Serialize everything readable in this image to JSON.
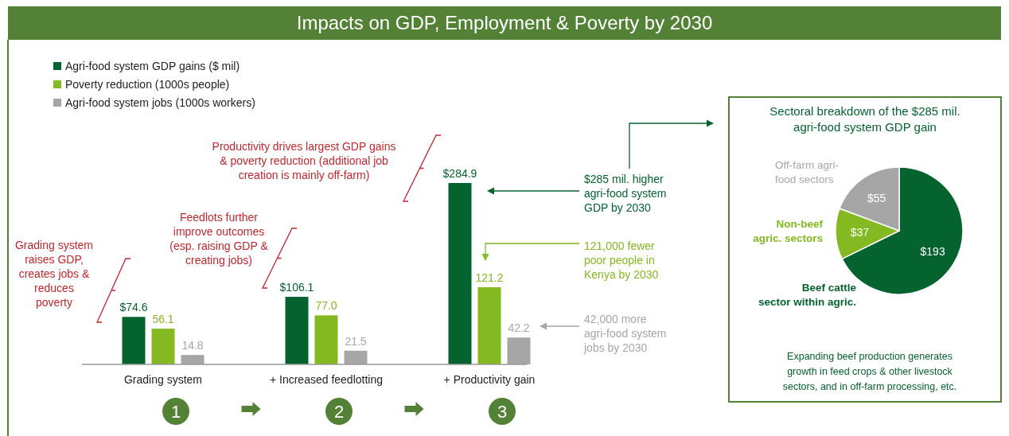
{
  "chart_data": [
    {
      "type": "bar",
      "title": "Impacts on GDP, Employment & Poverty by 2030",
      "categories": [
        "Grading system",
        "+ Increased feedlotting",
        "+ Productivity gain"
      ],
      "legend": "top left",
      "series": [
        {
          "name": "Agri-food system GDP gains ($ mil)",
          "color": "#05632f",
          "values": [
            74.6,
            106.1,
            284.9
          ],
          "value_labels": [
            "$74.6",
            "$106.1",
            "$284.9"
          ]
        },
        {
          "name": "Poverty reduction (1000s people)",
          "color": "#84b921",
          "values": [
            56.1,
            77.0,
            121.2
          ],
          "value_labels": [
            "56.1",
            "77.0",
            "121.2"
          ]
        },
        {
          "name": "Agri-food system jobs (1000s workers)",
          "color": "#a6a6a6",
          "values": [
            14.8,
            21.5,
            42.2
          ],
          "value_labels": [
            "14.8",
            "21.5",
            "42.2"
          ]
        }
      ],
      "annotations": [
        "Grading system\nraises GDP,\ncreates jobs &\nreduces\npoverty",
        "Feedlots further\nimprove outcomes\n(esp. raising GDP &\ncreating jobs)",
        "Productivity drives largest GDP gains\n& poverty reduction (additional job\ncreation is mainly off-farm)",
        "$285 mil. higher\nagri-food system\nGDP by 2030",
        "121,000 fewer\npoor people in\nKenya by 2030",
        "42,000 more\nagri-food system\njobs by 2030",
        "1",
        "2",
        "3"
      ]
    },
    {
      "type": "pie",
      "title": "Sectoral breakdown of the $285 mil.\nagri-food system GDP gain",
      "categories": [
        "Beef cattle\nsector within agric.",
        "Non-beef\nagric. sectors",
        "Off-farm agri-\nfood sectors"
      ],
      "values": [
        193,
        37,
        55
      ],
      "value_labels": [
        "$193",
        "$37",
        "$55"
      ],
      "colors": [
        "#05632f",
        "#84b921",
        "#a6a6a6"
      ],
      "annotations": [
        "Expanding beef production generates\ngrowth in feed crops & other livestock\nsectors, and in off-farm processing, etc."
      ]
    }
  ]
}
